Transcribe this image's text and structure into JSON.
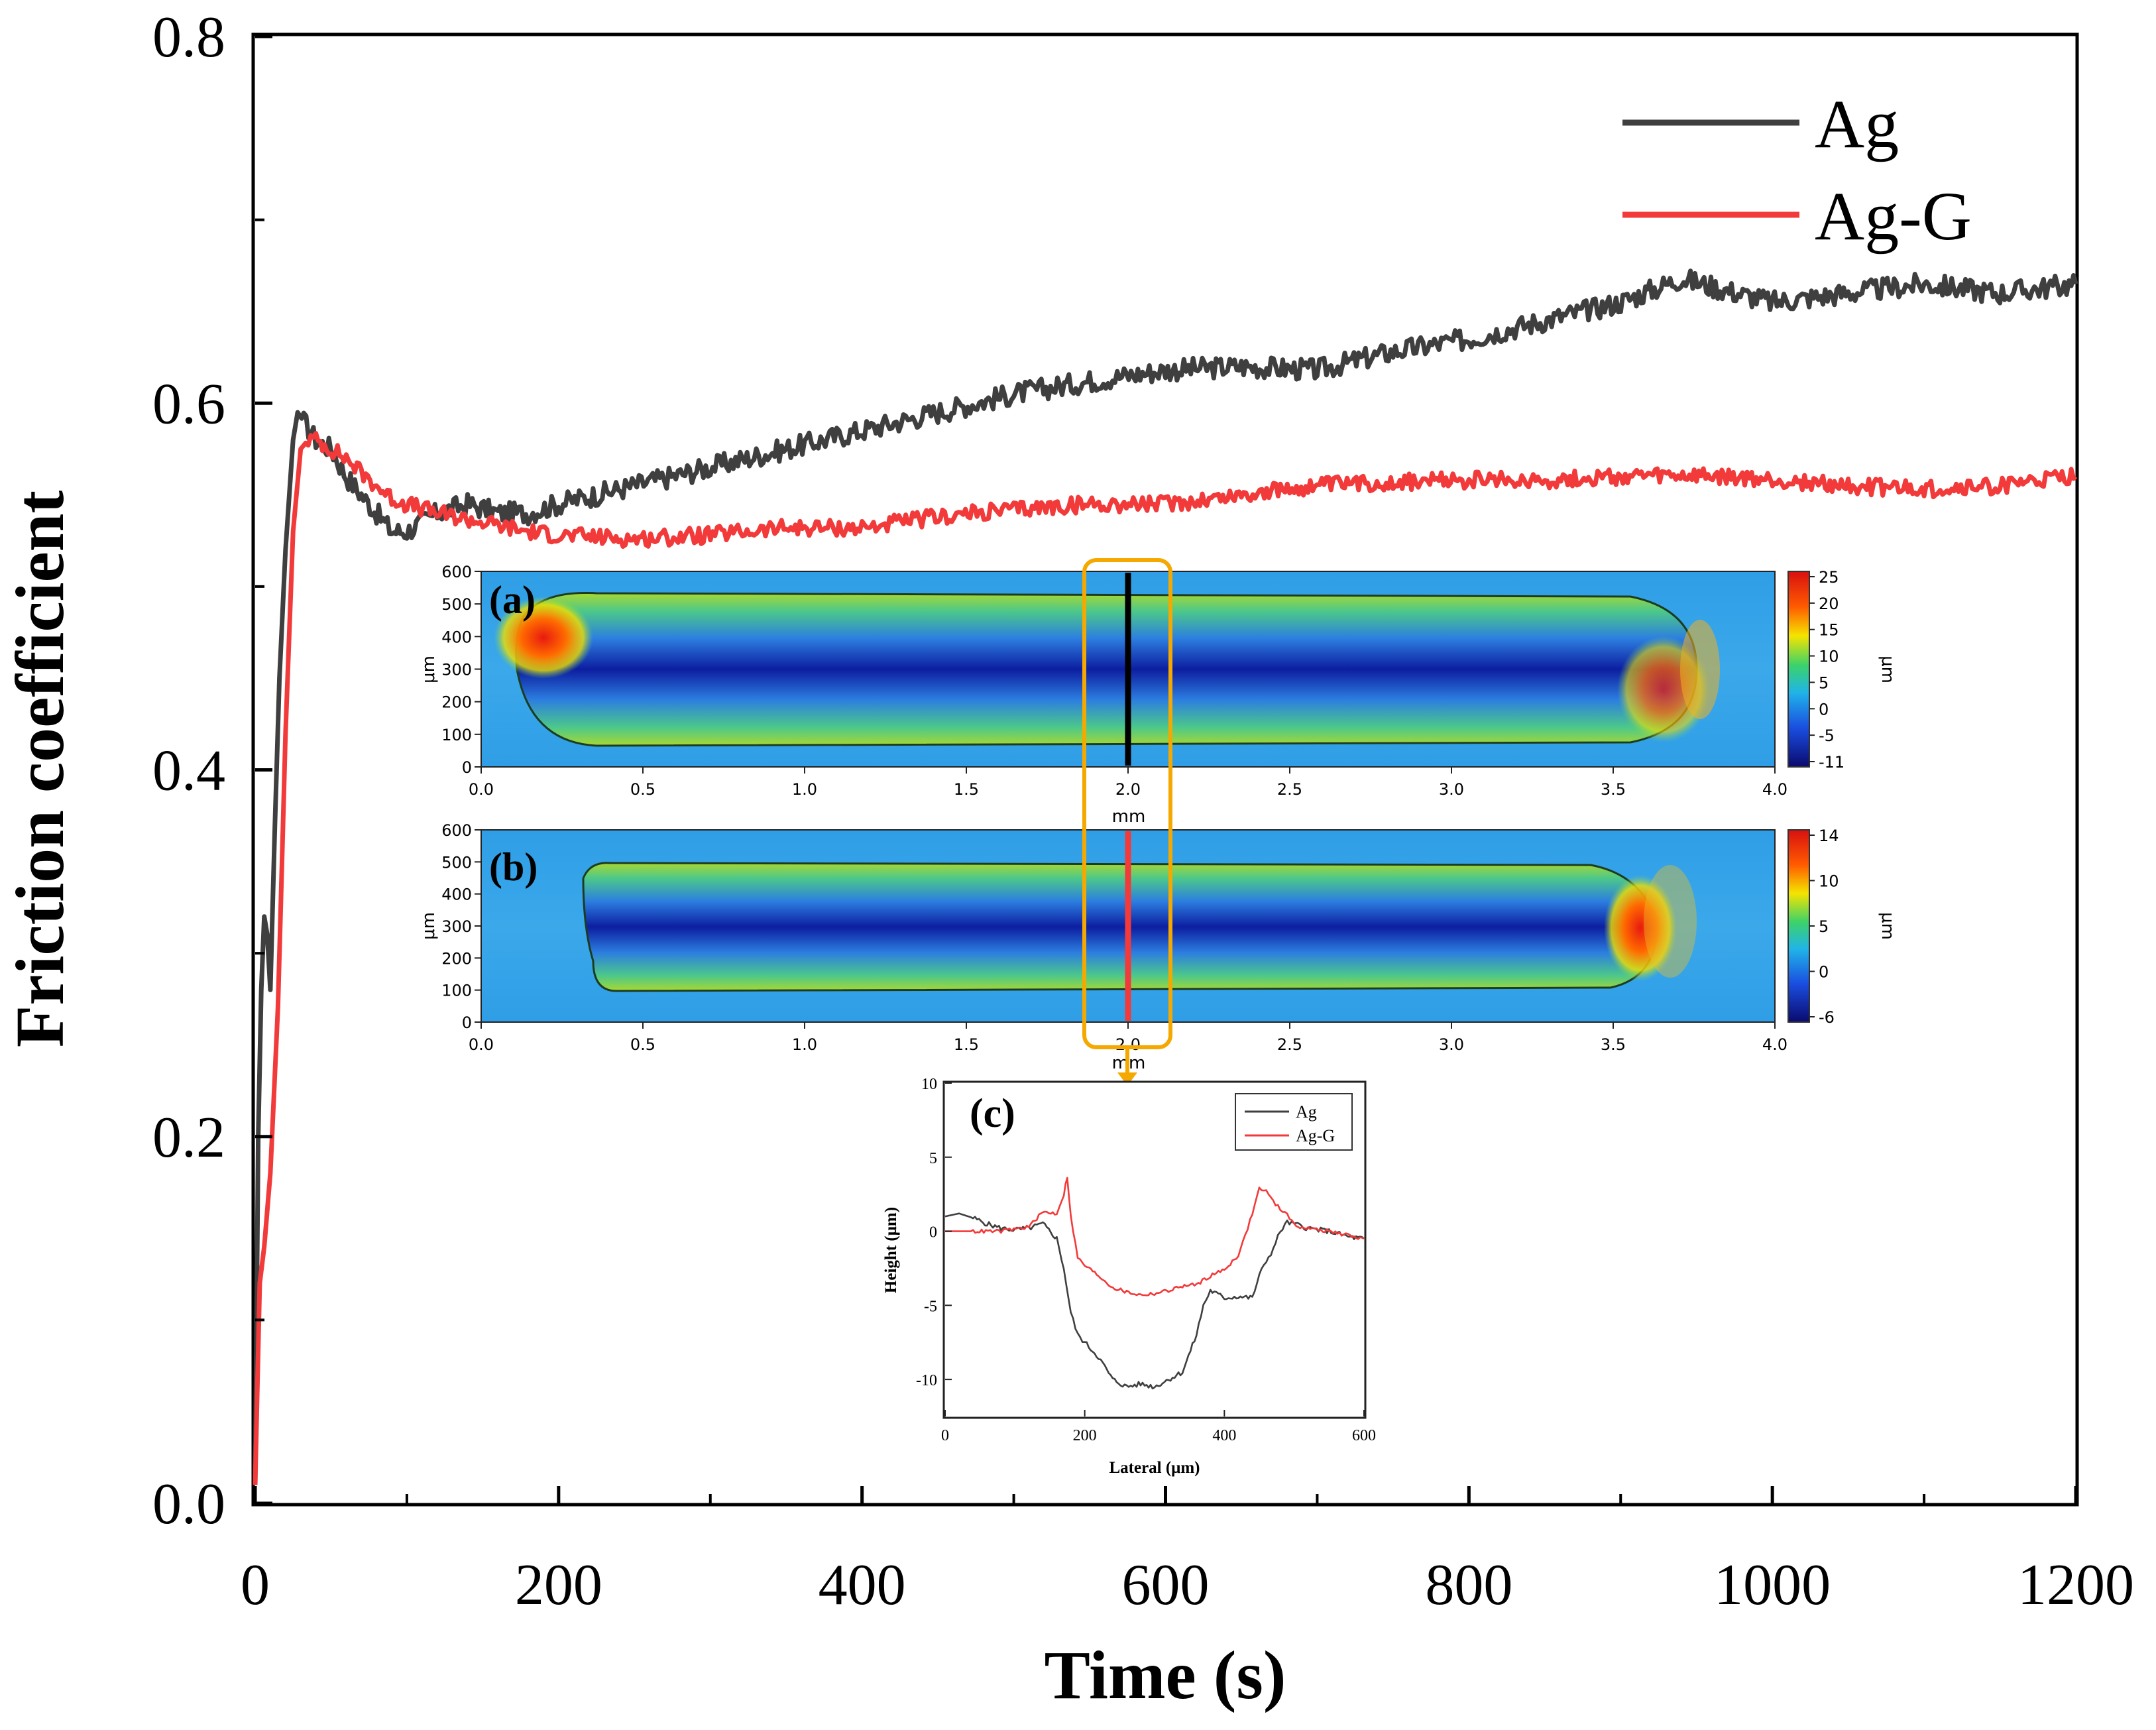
{
  "colors": {
    "ag": "#3f3f3f",
    "ag_g": "#f23a3a",
    "highlight": "#f5a800",
    "axis": "#000000"
  },
  "chart_data": [
    {
      "id": "main",
      "type": "line",
      "title": "",
      "xlabel": "Time (s)",
      "ylabel": "Friction coefficient",
      "xlim": [
        0,
        1200
      ],
      "ylim": [
        0,
        0.8
      ],
      "xticks": [
        "0",
        "200",
        "400",
        "600",
        "800",
        "1000",
        "1200"
      ],
      "yticks": [
        "0.0",
        "0.2",
        "0.4",
        "0.6",
        "0.8"
      ],
      "legend_position": "top-right",
      "series": [
        {
          "name": "Ag",
          "color": "#3f3f3f",
          "x": [
            0,
            2,
            4,
            6,
            8,
            10,
            13,
            16,
            20,
            25,
            28,
            32,
            40,
            50,
            60,
            70,
            80,
            90,
            100,
            120,
            140,
            160,
            180,
            200,
            250,
            300,
            350,
            400,
            450,
            500,
            550,
            600,
            650,
            700,
            750,
            800,
            850,
            900,
            940,
            1000,
            1050,
            1100,
            1150,
            1200
          ],
          "y": [
            0.01,
            0.2,
            0.28,
            0.32,
            0.31,
            0.28,
            0.37,
            0.45,
            0.52,
            0.58,
            0.595,
            0.59,
            0.58,
            0.575,
            0.56,
            0.55,
            0.54,
            0.53,
            0.53,
            0.54,
            0.545,
            0.54,
            0.54,
            0.545,
            0.555,
            0.565,
            0.575,
            0.585,
            0.595,
            0.605,
            0.612,
            0.618,
            0.62,
            0.618,
            0.628,
            0.635,
            0.645,
            0.655,
            0.668,
            0.655,
            0.66,
            0.665,
            0.66,
            0.665
          ]
        },
        {
          "name": "Ag-G",
          "color": "#f23a3a",
          "x": [
            0,
            3,
            6,
            10,
            15,
            20,
            25,
            30,
            35,
            40,
            50,
            60,
            70,
            80,
            90,
            100,
            120,
            150,
            180,
            200,
            250,
            300,
            350,
            400,
            450,
            500,
            550,
            600,
            650,
            700,
            750,
            800,
            850,
            900,
            950,
            1000,
            1050,
            1100,
            1150,
            1200
          ],
          "y": [
            0.01,
            0.12,
            0.14,
            0.18,
            0.27,
            0.42,
            0.53,
            0.575,
            0.58,
            0.58,
            0.575,
            0.57,
            0.562,
            0.555,
            0.548,
            0.545,
            0.54,
            0.535,
            0.53,
            0.528,
            0.526,
            0.528,
            0.532,
            0.532,
            0.538,
            0.542,
            0.545,
            0.545,
            0.55,
            0.555,
            0.557,
            0.558,
            0.558,
            0.56,
            0.56,
            0.558,
            0.555,
            0.553,
            0.555,
            0.56
          ]
        }
      ]
    },
    {
      "id": "c",
      "type": "line",
      "title": "(c)",
      "xlabel": "Lateral (μm)",
      "ylabel": "Height (μm)",
      "xlim": [
        0,
        600
      ],
      "ylim": [
        -12.5,
        10
      ],
      "xticks": [
        "0",
        "200",
        "400",
        "600"
      ],
      "yticks": [
        "10",
        "5",
        "0",
        "-5",
        "-10"
      ],
      "legend_position": "top-right",
      "series": [
        {
          "name": "Ag",
          "color": "#3f3f3f",
          "x": [
            0,
            20,
            40,
            60,
            80,
            100,
            120,
            140,
            160,
            170,
            180,
            190,
            200,
            220,
            240,
            260,
            280,
            300,
            320,
            340,
            360,
            370,
            380,
            400,
            420,
            440,
            450,
            460,
            470,
            480,
            490,
            500,
            520,
            550,
            580,
            600
          ],
          "y": [
            1.0,
            1.2,
            0.9,
            0.5,
            0.2,
            0.1,
            0.2,
            0.5,
            -0.5,
            -2.5,
            -5.5,
            -7.0,
            -7.5,
            -8.5,
            -10.0,
            -10.5,
            -10.3,
            -10.5,
            -10.0,
            -9.5,
            -7.0,
            -5.0,
            -4.0,
            -4.5,
            -4.4,
            -4.5,
            -3.0,
            -2.0,
            -1.2,
            0.0,
            0.6,
            0.5,
            0.2,
            0.0,
            -0.4,
            -0.5
          ]
        },
        {
          "name": "Ag-G",
          "color": "#f23a3a",
          "x": [
            0,
            40,
            80,
            120,
            140,
            160,
            170,
            175,
            180,
            190,
            200,
            220,
            240,
            260,
            280,
            300,
            320,
            340,
            360,
            380,
            400,
            420,
            430,
            440,
            450,
            460,
            470,
            480,
            490,
            500,
            520,
            550,
            580,
            600
          ],
          "y": [
            0.0,
            0.0,
            0.0,
            0.3,
            1.3,
            1.2,
            2.5,
            3.7,
            1.0,
            -1.8,
            -2.3,
            -3.0,
            -3.8,
            -4.1,
            -4.3,
            -4.2,
            -4.0,
            -3.7,
            -3.6,
            -3.0,
            -2.6,
            -1.6,
            -0.3,
            1.2,
            2.9,
            2.7,
            2.0,
            1.5,
            1.2,
            0.4,
            0.2,
            0.0,
            -0.3,
            -0.5
          ]
        }
      ]
    }
  ],
  "insets": {
    "a": {
      "label": "(a)",
      "x_unit": "mm",
      "y_unit": "μm",
      "colorbar_unit": "μm",
      "xticks": [
        "0.0",
        "0.5",
        "1.0",
        "1.5",
        "2.0",
        "2.5",
        "3.0",
        "3.5",
        "4.0"
      ],
      "yticks": [
        "600",
        "500",
        "400",
        "300",
        "200",
        "100",
        "0"
      ],
      "colorbar_ticks": [
        "25",
        "20",
        "15",
        "10",
        "5",
        "0",
        "-5",
        "-11"
      ],
      "track_start_mm": 0.1,
      "track_end_mm": 3.75,
      "track_bottom_um": 80,
      "track_top_um": 520,
      "profile_line_mm": 2.0
    },
    "b": {
      "label": "(b)",
      "x_unit": "mm",
      "y_unit": "μm",
      "colorbar_unit": "μm",
      "xticks": [
        "0.0",
        "0.5",
        "1.0",
        "1.5",
        "2.0",
        "2.5",
        "3.0",
        "3.5",
        "4.0"
      ],
      "yticks": [
        "600",
        "500",
        "400",
        "300",
        "200",
        "100",
        "0"
      ],
      "colorbar_ticks": [
        "14",
        "10",
        "5",
        "0",
        "-6"
      ],
      "track_start_mm": 0.3,
      "track_end_mm": 3.62,
      "track_bottom_um": 100,
      "track_top_um": 480,
      "profile_line_mm": 2.0
    }
  }
}
